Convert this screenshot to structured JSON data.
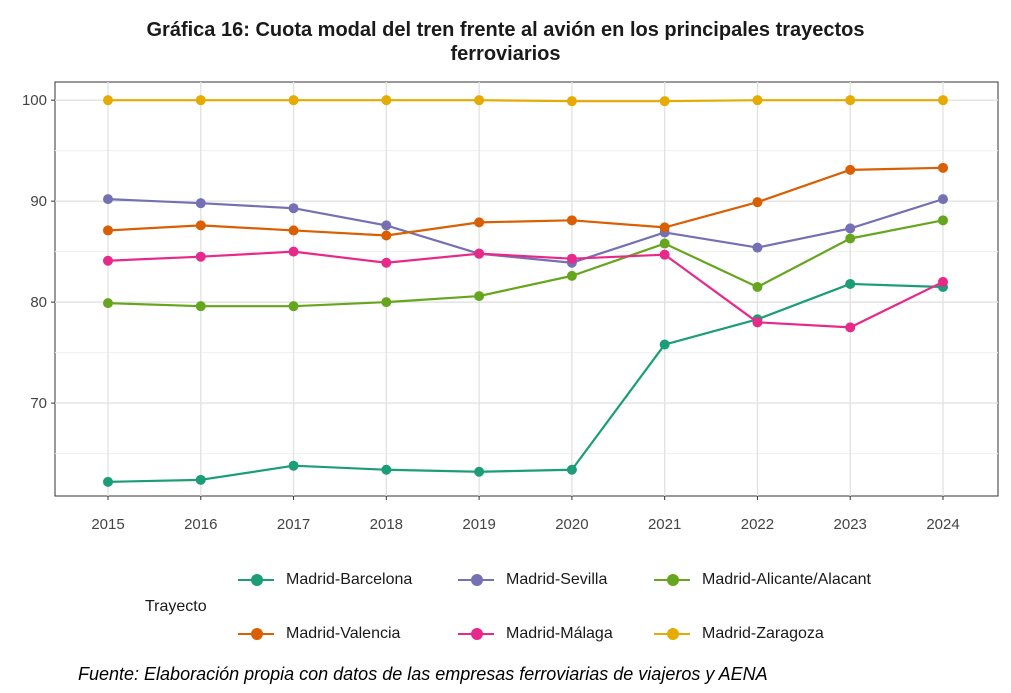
{
  "title_line1": "Gráfica 16: Cuota modal del tren frente al avión en los principales trayectos",
  "title_line2": "ferroviarios",
  "legend_title": "Trayecto",
  "source": "Fuente: Elaboración propia con datos de las empresas ferroviarias de viajeros y AENA",
  "chart_data": {
    "type": "line",
    "title": "Gráfica 16: Cuota modal del tren frente al avión en los principales trayectos ferroviarios",
    "xlabel": "",
    "ylabel": "",
    "x": [
      2015,
      2016,
      2017,
      2018,
      2019,
      2020,
      2021,
      2022,
      2023,
      2024
    ],
    "x_tick_labels": [
      "2015",
      "2016",
      "2017",
      "2018",
      "2019",
      "2020",
      "2021",
      "2022",
      "2023",
      "2024"
    ],
    "y_tick_labels": [
      "70",
      "80",
      "90",
      "100"
    ],
    "ylim": [
      60.8,
      101.8
    ],
    "grid": true,
    "legend_position": "bottom",
    "series": [
      {
        "name": "Madrid-Barcelona",
        "color": "#1b9e77",
        "values": [
          62.2,
          62.4,
          63.8,
          63.4,
          63.2,
          63.4,
          75.8,
          78.3,
          81.8,
          81.5
        ]
      },
      {
        "name": "Madrid-Sevilla",
        "color": "#7570b3",
        "values": [
          90.2,
          89.8,
          89.3,
          87.6,
          84.8,
          83.9,
          86.9,
          85.4,
          87.3,
          90.2
        ]
      },
      {
        "name": "Madrid-Alicante/Alacant",
        "color": "#66a61e",
        "values": [
          79.9,
          79.6,
          79.6,
          80.0,
          80.6,
          82.6,
          85.8,
          81.5,
          86.3,
          88.1
        ]
      },
      {
        "name": "Madrid-Valencia",
        "color": "#d95f02",
        "values": [
          87.1,
          87.6,
          87.1,
          86.6,
          87.9,
          88.1,
          87.4,
          89.9,
          93.1,
          93.3
        ]
      },
      {
        "name": "Madrid-Málaga",
        "color": "#e7298a",
        "values": [
          84.1,
          84.5,
          85.0,
          83.9,
          84.8,
          84.3,
          84.7,
          78.0,
          77.5,
          82.0
        ]
      },
      {
        "name": "Madrid-Zaragoza",
        "color": "#e6ab02",
        "values": [
          100.0,
          100.0,
          100.0,
          100.0,
          100.0,
          99.9,
          99.9,
          100.0,
          100.0,
          100.0
        ]
      }
    ]
  }
}
